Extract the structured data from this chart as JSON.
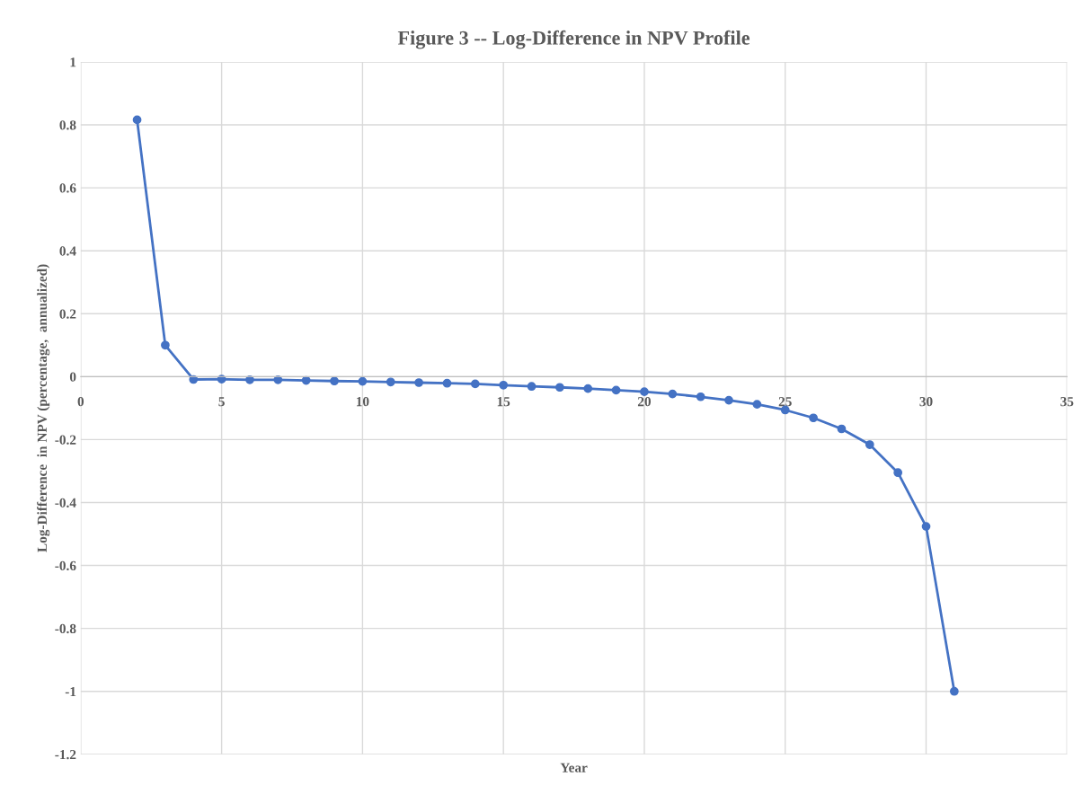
{
  "chart_data": {
    "type": "line",
    "title": "Figure 3 -- Log-Difference in NPV Profile",
    "xlabel": "Year",
    "ylabel": "Log-Difference  in NPV (percentage,  annualized)",
    "x": [
      2,
      3,
      4,
      5,
      6,
      7,
      8,
      9,
      10,
      11,
      12,
      13,
      14,
      15,
      16,
      17,
      18,
      19,
      20,
      21,
      22,
      23,
      24,
      25,
      26,
      27,
      28,
      29,
      30,
      31
    ],
    "series": [
      {
        "color": "#4472c4",
        "values": [
          0.816,
          0.1,
          -0.009,
          -0.008,
          -0.01,
          -0.01,
          -0.012,
          -0.014,
          -0.015,
          -0.017,
          -0.019,
          -0.021,
          -0.023,
          -0.027,
          -0.031,
          -0.034,
          -0.038,
          -0.043,
          -0.048,
          -0.055,
          -0.064,
          -0.075,
          -0.088,
          -0.106,
          -0.131,
          -0.166,
          -0.216,
          -0.305,
          -0.476,
          -1.0
        ]
      }
    ],
    "xlim": [
      0,
      35
    ],
    "xticks": [
      0,
      5,
      10,
      15,
      20,
      25,
      30,
      35
    ],
    "ylim": [
      -1.2,
      1
    ],
    "yticks": [
      {
        "value": -1.2,
        "label": "-1.2"
      },
      {
        "value": -1,
        "label": "-1"
      },
      {
        "value": -0.8,
        "label": "-0.8"
      },
      {
        "value": -0.6,
        "label": "-0.6"
      },
      {
        "value": -0.4,
        "label": "-0.4"
      },
      {
        "value": -0.2,
        "label": "-0.2"
      },
      {
        "value": 0,
        "label": "0"
      },
      {
        "value": 0.2,
        "label": "0.2"
      },
      {
        "value": 0.4,
        "label": "0.4"
      },
      {
        "value": 0.6,
        "label": "0.6"
      },
      {
        "value": 0.8,
        "label": "0.8"
      },
      {
        "value": 1,
        "label": "1"
      }
    ],
    "grid": true,
    "marker": "circle",
    "line_style": "solid",
    "legend": false
  }
}
